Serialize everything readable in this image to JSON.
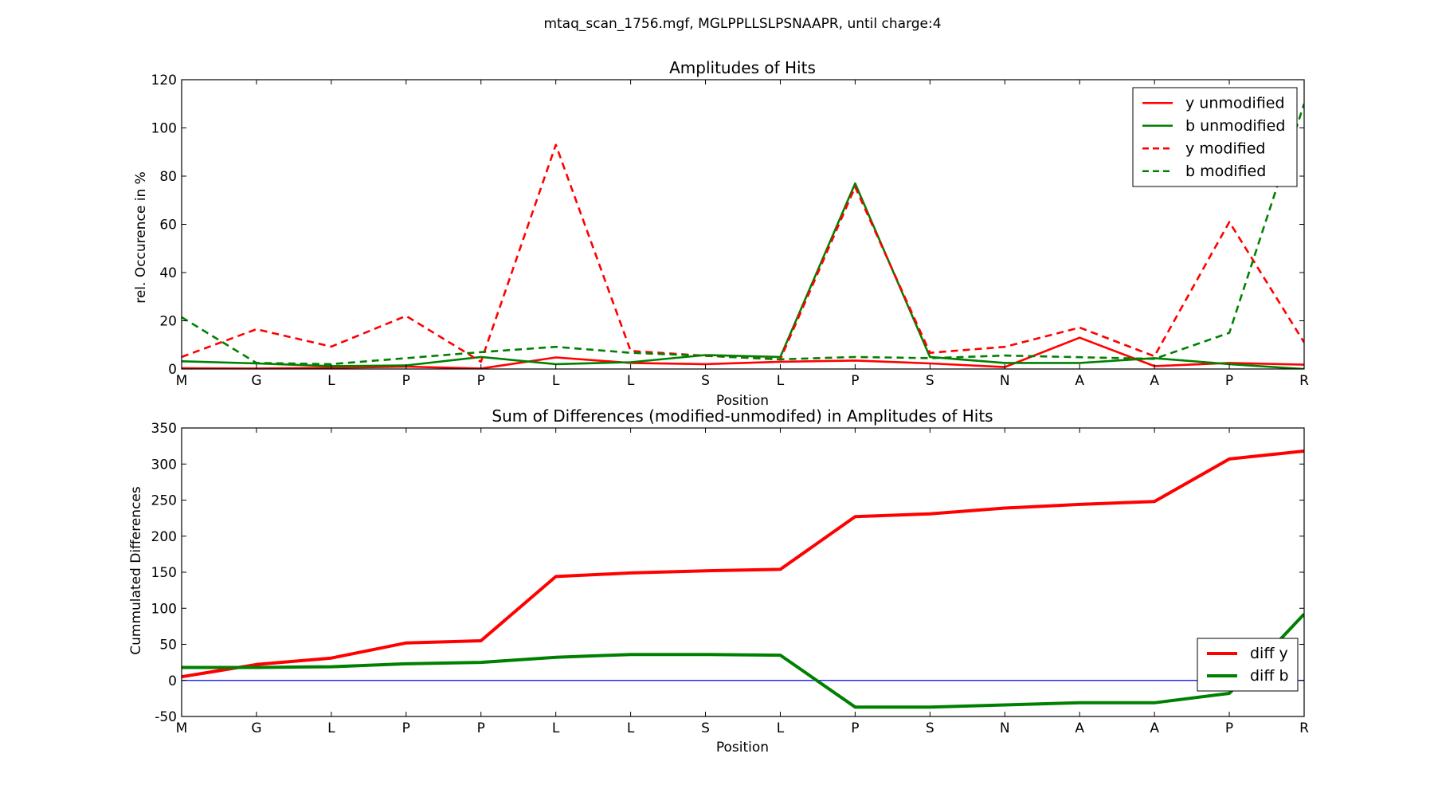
{
  "figure": {
    "suptitle": "mtaq_scan_1756.mgf, MGLPPLLSLPSNAAPR, until charge:4"
  },
  "chart_data": [
    {
      "type": "line",
      "title": "Amplitudes of Hits",
      "xlabel": "Position",
      "ylabel": "rel. Occurence in %",
      "categories": [
        "M",
        "G",
        "L",
        "P",
        "P",
        "L",
        "L",
        "S",
        "L",
        "P",
        "S",
        "N",
        "A",
        "A",
        "P",
        "R"
      ],
      "ylim": [
        0,
        120
      ],
      "yticks": [
        0,
        20,
        40,
        60,
        80,
        100,
        120
      ],
      "grid": false,
      "legend_position": "top-right",
      "series": [
        {
          "name": "y unmodified",
          "color": "#ff0000",
          "dash": "solid",
          "width": "normal",
          "values": [
            0.3,
            0.2,
            0.5,
            1.0,
            0.2,
            4.8,
            2.5,
            2.0,
            3.0,
            3.5,
            2.3,
            0.8,
            13.0,
            1.2,
            2.5,
            1.8
          ]
        },
        {
          "name": "b unmodified",
          "color": "#008000",
          "dash": "solid",
          "width": "normal",
          "values": [
            3.2,
            2.3,
            1.2,
            1.5,
            5.0,
            2.0,
            2.8,
            5.8,
            5.0,
            77.0,
            5.0,
            2.5,
            2.5,
            4.5,
            2.0,
            0.0
          ]
        },
        {
          "name": "y modified",
          "color": "#ff0000",
          "dash": "dashed",
          "width": "normal",
          "values": [
            5.0,
            16.5,
            9.3,
            22.0,
            3.0,
            93.0,
            7.5,
            5.5,
            4.0,
            75.5,
            6.7,
            9.2,
            17.2,
            5.3,
            61.0,
            11.0
          ]
        },
        {
          "name": "b modified",
          "color": "#008000",
          "dash": "dashed",
          "width": "normal",
          "values": [
            21.5,
            2.5,
            2.0,
            4.5,
            7.0,
            9.2,
            6.7,
            5.5,
            4.0,
            5.0,
            4.5,
            5.6,
            4.9,
            4.2,
            15.0,
            110.0
          ]
        }
      ]
    },
    {
      "type": "line",
      "title": "Sum of Differences (modified-unmodifed) in Amplitudes of Hits",
      "xlabel": "Position",
      "ylabel": "Cummulated Differences",
      "categories": [
        "M",
        "G",
        "L",
        "P",
        "P",
        "L",
        "L",
        "S",
        "L",
        "P",
        "S",
        "N",
        "A",
        "A",
        "P",
        "R"
      ],
      "ylim": [
        -50,
        350
      ],
      "yticks": [
        -50,
        0,
        50,
        100,
        150,
        200,
        250,
        300,
        350
      ],
      "grid": false,
      "legend_position": "lower-right",
      "reference_line": {
        "value": 0,
        "color": "#0000ff"
      },
      "series": [
        {
          "name": "diff y",
          "color": "#ff0000",
          "dash": "solid",
          "width": "thick",
          "values": [
            5,
            22,
            31,
            52,
            55,
            144,
            149,
            152,
            154,
            227,
            231,
            239,
            244,
            248,
            307,
            318
          ]
        },
        {
          "name": "diff b",
          "color": "#008000",
          "dash": "solid",
          "width": "thick",
          "values": [
            18,
            18,
            19,
            23,
            25,
            32,
            36,
            36,
            35,
            -37,
            -37,
            -34,
            -31,
            -31,
            -18,
            92
          ]
        }
      ]
    }
  ]
}
